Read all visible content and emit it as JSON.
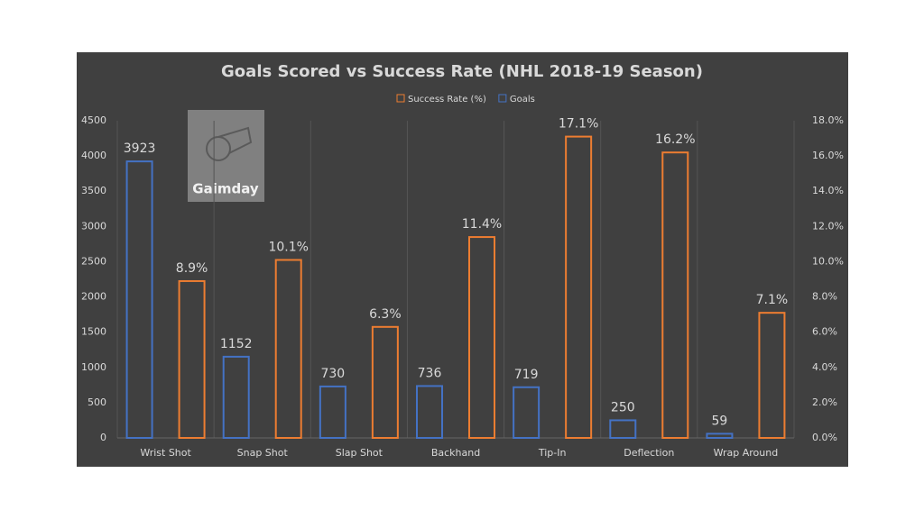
{
  "watermark": "Gaimday",
  "chart_data": {
    "type": "bar",
    "title": "Goals Scored vs Success Rate (NHL 2018-19 Season)",
    "categories": [
      "Wrist Shot",
      "Snap Shot",
      "Slap Shot",
      "Backhand",
      "Tip-In",
      "Deflection",
      "Wrap Around"
    ],
    "series": [
      {
        "name": "Success Rate (%)",
        "color": "#ed7d31",
        "axis": "y2",
        "values": [
          8.9,
          10.1,
          6.3,
          11.4,
          17.1,
          16.2,
          7.1
        ],
        "value_labels": [
          "8.9%",
          "10.1%",
          "6.3%",
          "11.4%",
          "17.1%",
          "16.2%",
          "7.1%"
        ]
      },
      {
        "name": "Goals",
        "color": "#4472c4",
        "values": [
          3923,
          1152,
          730,
          736,
          719,
          250,
          59
        ]
      }
    ],
    "ylim": [
      0,
      4500
    ],
    "yticks": [
      0,
      500,
      1000,
      1500,
      2000,
      2500,
      3000,
      3500,
      4000,
      4500
    ],
    "y2lim": [
      0,
      18
    ],
    "y2ticks": [
      {
        "value": 0,
        "label": "0.0%"
      },
      {
        "value": 2,
        "label": "2.0%"
      },
      {
        "value": 4,
        "label": "4.0%"
      },
      {
        "value": 6,
        "label": "6.0%"
      },
      {
        "value": 8,
        "label": "8.0%"
      },
      {
        "value": 10,
        "label": "10.0%"
      },
      {
        "value": 12,
        "label": "12.0%"
      },
      {
        "value": 14,
        "label": "14.0%"
      },
      {
        "value": 16,
        "label": "16.0%"
      },
      {
        "value": 18,
        "label": "18.0%"
      }
    ],
    "legend": "top"
  }
}
